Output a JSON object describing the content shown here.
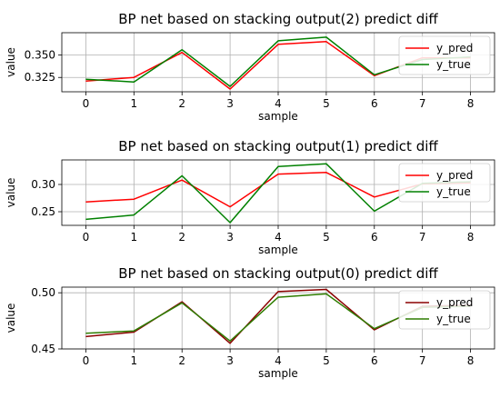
{
  "chart_data": [
    {
      "type": "line",
      "title": "BP net based on stacking output(2) predict diff",
      "xlabel": "sample",
      "ylabel": "value",
      "x": [
        0,
        1,
        2,
        3,
        4,
        5,
        6,
        7,
        8
      ],
      "xticks": [
        "0",
        "1",
        "2",
        "3",
        "4",
        "5",
        "6",
        "7",
        "8"
      ],
      "yticks": [
        0.325,
        0.35
      ],
      "ytick_labels": [
        "0.325",
        "0.350"
      ],
      "ylim": [
        0.309,
        0.375
      ],
      "grid": true,
      "legend": "upper-right",
      "series": [
        {
          "name": "y_pred",
          "color": "#ff0000",
          "values": [
            0.321,
            0.325,
            0.353,
            0.312,
            0.362,
            0.365,
            0.327,
            0.347,
            0.347
          ]
        },
        {
          "name": "y_true",
          "color": "#008000",
          "values": [
            0.323,
            0.32,
            0.356,
            0.315,
            0.366,
            0.37,
            0.328,
            0.345,
            0.348
          ]
        }
      ]
    },
    {
      "type": "line",
      "title": "BP net based on stacking output(1) predict diff",
      "xlabel": "sample",
      "ylabel": "value",
      "x": [
        0,
        1,
        2,
        3,
        4,
        5,
        6,
        7,
        8
      ],
      "xticks": [
        "0",
        "1",
        "2",
        "3",
        "4",
        "5",
        "6",
        "7",
        "8"
      ],
      "yticks": [
        0.25,
        0.3
      ],
      "ytick_labels": [
        "0.25",
        "0.30"
      ],
      "ylim": [
        0.225,
        0.345
      ],
      "grid": true,
      "legend": "upper-right",
      "series": [
        {
          "name": "y_pred",
          "color": "#ff0000",
          "values": [
            0.268,
            0.273,
            0.308,
            0.259,
            0.319,
            0.322,
            0.277,
            0.301,
            0.303
          ]
        },
        {
          "name": "y_true",
          "color": "#008000",
          "values": [
            0.236,
            0.244,
            0.316,
            0.23,
            0.333,
            0.338,
            0.251,
            0.302,
            0.305
          ]
        }
      ]
    },
    {
      "type": "line",
      "title": "BP net based on stacking output(0) predict diff",
      "xlabel": "sample",
      "ylabel": "value",
      "x": [
        0,
        1,
        2,
        3,
        4,
        5,
        6,
        7,
        8
      ],
      "xticks": [
        "0",
        "1",
        "2",
        "3",
        "4",
        "5",
        "6",
        "7",
        "8"
      ],
      "yticks": [
        0.45,
        0.5
      ],
      "ytick_labels": [
        "0.45",
        "0.50"
      ],
      "ylim": [
        0.45,
        0.505
      ],
      "grid": true,
      "legend": "upper-right",
      "series": [
        {
          "name": "y_pred",
          "color": "#8b0000",
          "values": [
            0.461,
            0.465,
            0.492,
            0.455,
            0.501,
            0.503,
            0.467,
            0.488,
            0.489
          ]
        },
        {
          "name": "y_true",
          "color": "#2e7d00",
          "values": [
            0.464,
            0.466,
            0.491,
            0.457,
            0.496,
            0.499,
            0.468,
            0.487,
            0.488
          ]
        }
      ]
    }
  ]
}
